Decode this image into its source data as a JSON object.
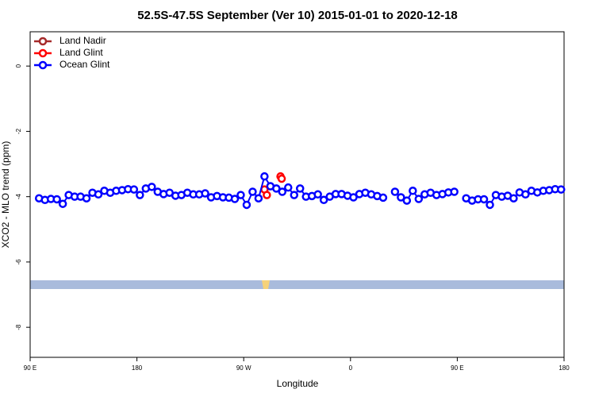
{
  "chart_data": {
    "type": "line",
    "title": "52.5S-47.5S September (Ver 10)   2015-01-01 to 2020-12-18",
    "xlabel": "Longitude",
    "ylabel": "XCO2 - MLO trend (ppm)",
    "xlim": [
      90,
      540
    ],
    "ylim": [
      -8.92,
      1.05
    ],
    "xticks": [
      {
        "value": 90,
        "label": "90 E"
      },
      180,
      {
        "value": 270,
        "label": "90 W"
      },
      {
        "value": 360,
        "label": "0"
      },
      {
        "value": 450,
        "label": "90 E"
      },
      {
        "value": 540,
        "label": "180"
      }
    ],
    "yticks": [
      0,
      -2,
      -4,
      -6,
      -8
    ],
    "legend": "top-left",
    "series": [
      {
        "name": "Land Nadir",
        "color": "#a52a2a",
        "x": [],
        "values": []
      },
      {
        "name": "Land Glint",
        "color": "#ff0000",
        "x": [
          287.5,
          289.5,
          null,
          301,
          302
        ],
        "values": [
          -3.78,
          -3.95,
          null,
          -3.38,
          -3.45
        ]
      },
      {
        "name": "Ocean Glint",
        "color": "#0000ff",
        "x": [
          97.5,
          102.5,
          107.5,
          112.5,
          117.5,
          122.5,
          127.5,
          132.5,
          137.5,
          142.5,
          147.5,
          152.5,
          157.5,
          162.5,
          167.5,
          172.5,
          177.5,
          182.5,
          187.5,
          192.5,
          197.5,
          202.5,
          207.5,
          212.5,
          217.5,
          222.5,
          227.5,
          232.5,
          237.5,
          242.5,
          247.5,
          252.5,
          257.5,
          262.5,
          267.5,
          272.5,
          277.5,
          282.5,
          287.5,
          292.5,
          297.5,
          302.5,
          307.5,
          312.5,
          317.5,
          322.5,
          327.5,
          332.5,
          337.5,
          342.5,
          347.5,
          352.5,
          357.5,
          362.5,
          367.5,
          372.5,
          377.5,
          382.5,
          387.5,
          392.5,
          397.5,
          402.5,
          407.5,
          412.5,
          417.5,
          422.5,
          427.5,
          432.5,
          437.5,
          442.5,
          447.5,
          452.5,
          457.5,
          462.5,
          467.5,
          472.5,
          477.5,
          482.5,
          487.5,
          492.5,
          497.5,
          502.5,
          507.5,
          512.5,
          517.5,
          522.5,
          527.5,
          532.5,
          537.5
        ],
        "values": [
          -4.05,
          -4.1,
          -4.07,
          -4.08,
          -4.22,
          -3.95,
          -4.0,
          -4.0,
          -4.05,
          -3.88,
          -3.93,
          -3.82,
          -3.88,
          -3.82,
          -3.8,
          -3.77,
          -3.78,
          -3.95,
          -3.75,
          -3.7,
          -3.85,
          -3.92,
          -3.88,
          -3.97,
          -3.95,
          -3.88,
          -3.93,
          -3.93,
          -3.9,
          -4.02,
          -3.98,
          -4.02,
          -4.03,
          -4.07,
          -3.95,
          -4.25,
          -3.85,
          -4.05,
          -3.38,
          -3.68,
          -3.75,
          -3.85,
          -3.72,
          -3.95,
          -3.75,
          -4.0,
          -3.98,
          -3.93,
          -4.1,
          -4.0,
          -3.92,
          -3.92,
          -3.97,
          -4.02,
          -3.92,
          -3.88,
          -3.93,
          -3.98,
          -4.03,
          null,
          -3.85,
          -4.02,
          -4.12,
          -3.82,
          -4.07,
          -3.93,
          -3.88,
          -3.95,
          -3.92,
          -3.87,
          -3.85,
          null,
          -4.05,
          -4.12,
          -4.08,
          -4.08,
          -4.25,
          -3.95,
          -4.0,
          -3.97,
          -4.05,
          -3.87,
          -3.93,
          -3.82,
          -3.87,
          -3.82,
          -3.8,
          -3.77,
          -3.78
        ]
      }
    ]
  }
}
